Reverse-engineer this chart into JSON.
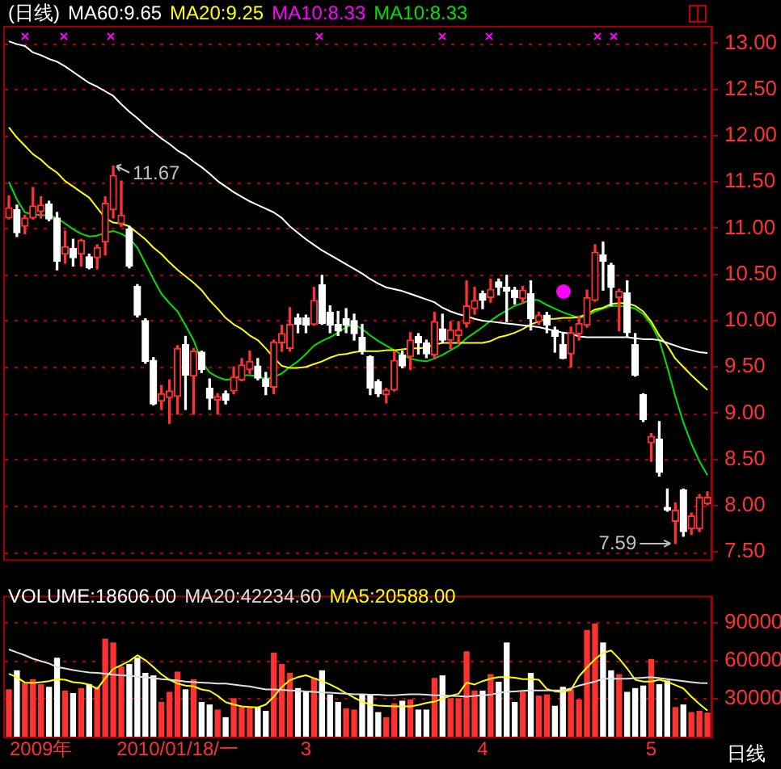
{
  "chart_data": [
    {
      "type": "candlestick",
      "title": "(日线)",
      "categories": [
        null,
        null,
        null,
        null,
        null,
        null,
        null,
        null,
        null,
        null,
        null,
        null,
        null,
        null,
        null,
        null,
        null,
        null,
        null,
        null,
        null,
        null,
        null,
        null,
        null,
        null,
        null,
        null,
        null,
        null,
        null,
        null,
        null,
        null,
        null,
        null,
        null,
        null,
        null,
        null,
        null,
        null,
        null,
        null,
        null,
        null,
        null,
        null,
        null,
        null,
        null,
        null,
        null,
        null,
        null,
        null,
        null,
        null,
        null,
        null,
        null,
        null,
        null,
        null,
        null,
        null,
        null,
        null,
        null,
        null,
        null,
        null,
        null,
        null,
        null,
        null,
        null,
        null,
        null,
        null,
        null,
        null,
        null,
        null,
        null,
        null,
        null,
        null
      ],
      "ohlc": [
        [
          11.11,
          11.35,
          11.1,
          11.22
        ],
        [
          11.2,
          11.25,
          10.91,
          10.95
        ],
        [
          11.02,
          11.14,
          10.94,
          11.11
        ],
        [
          11.11,
          11.44,
          11.1,
          11.24
        ],
        [
          11.18,
          11.34,
          11.11,
          11.25
        ],
        [
          11.26,
          11.29,
          11.08,
          11.1
        ],
        [
          11.11,
          11.17,
          10.55,
          10.64
        ],
        [
          10.72,
          10.97,
          10.62,
          10.8
        ],
        [
          10.78,
          10.88,
          10.59,
          10.68
        ],
        [
          10.72,
          10.88,
          10.59,
          10.87
        ],
        [
          10.69,
          10.72,
          10.56,
          10.57
        ],
        [
          10.68,
          10.82,
          10.56,
          10.79
        ],
        [
          10.85,
          11.34,
          10.71,
          11.27
        ],
        [
          11.2,
          11.67,
          11.11,
          11.57
        ],
        [
          11.05,
          11.51,
          11.02,
          11.14
        ],
        [
          10.99,
          11.02,
          10.57,
          10.59
        ],
        [
          10.37,
          10.39,
          10.04,
          10.06
        ],
        [
          10.0,
          10.02,
          9.54,
          9.56
        ],
        [
          9.57,
          9.6,
          9.09,
          9.1
        ],
        [
          9.13,
          9.3,
          9.04,
          9.21
        ],
        [
          9.17,
          9.36,
          8.89,
          9.24
        ],
        [
          9.18,
          9.73,
          8.99,
          9.7
        ],
        [
          9.74,
          9.83,
          9.04,
          9.41
        ],
        [
          9.4,
          9.7,
          8.99,
          9.67
        ],
        [
          9.66,
          9.67,
          9.44,
          9.47
        ],
        [
          9.27,
          9.37,
          9.04,
          9.16
        ],
        [
          9.14,
          9.21,
          8.99,
          9.18
        ],
        [
          9.21,
          9.24,
          9.1,
          9.14
        ],
        [
          9.24,
          9.5,
          9.21,
          9.39
        ],
        [
          9.36,
          9.59,
          9.35,
          9.52
        ],
        [
          9.47,
          9.67,
          9.43,
          9.56
        ],
        [
          9.51,
          9.59,
          9.36,
          9.38
        ],
        [
          9.37,
          9.44,
          9.2,
          9.29
        ],
        [
          9.28,
          9.79,
          9.21,
          9.77
        ],
        [
          9.76,
          9.95,
          9.67,
          9.86
        ],
        [
          9.7,
          10.14,
          9.67,
          9.96
        ],
        [
          10.03,
          10.07,
          9.87,
          9.96
        ],
        [
          10.03,
          10.06,
          9.87,
          9.95
        ],
        [
          9.96,
          10.36,
          9.95,
          10.22
        ],
        [
          10.39,
          10.49,
          9.96,
          9.97
        ],
        [
          10.09,
          10.16,
          9.87,
          9.95
        ],
        [
          9.96,
          10.1,
          9.84,
          9.89
        ],
        [
          10.02,
          10.13,
          9.87,
          9.95
        ],
        [
          10.0,
          10.07,
          9.79,
          9.86
        ],
        [
          9.82,
          9.96,
          9.64,
          9.67
        ],
        [
          9.61,
          9.62,
          9.2,
          9.27
        ],
        [
          9.34,
          9.36,
          9.18,
          9.21
        ],
        [
          9.2,
          9.27,
          9.11,
          9.25
        ],
        [
          9.25,
          9.67,
          9.24,
          9.57
        ],
        [
          9.63,
          9.67,
          9.49,
          9.51
        ],
        [
          9.61,
          9.87,
          9.47,
          9.79
        ],
        [
          9.83,
          9.86,
          9.64,
          9.76
        ],
        [
          9.76,
          9.79,
          9.6,
          9.64
        ],
        [
          9.63,
          10.09,
          9.59,
          9.99
        ],
        [
          9.91,
          10.07,
          9.76,
          9.79
        ],
        [
          9.79,
          9.99,
          9.7,
          9.9
        ],
        [
          9.84,
          9.99,
          9.76,
          9.9
        ],
        [
          9.97,
          10.43,
          9.93,
          10.16
        ],
        [
          10.13,
          10.36,
          10.07,
          10.22
        ],
        [
          10.29,
          10.32,
          10.13,
          10.22
        ],
        [
          10.25,
          10.45,
          10.2,
          10.34
        ],
        [
          10.42,
          10.45,
          10.28,
          10.36
        ],
        [
          10.36,
          10.49,
          9.99,
          10.32
        ],
        [
          10.33,
          10.36,
          10.18,
          10.25
        ],
        [
          10.24,
          10.37,
          10.19,
          10.33
        ],
        [
          10.29,
          10.43,
          9.9,
          10.02
        ],
        [
          9.99,
          10.09,
          9.96,
          10.06
        ],
        [
          10.06,
          10.09,
          9.87,
          9.95
        ],
        [
          9.9,
          9.93,
          9.66,
          9.83
        ],
        [
          9.74,
          9.87,
          9.59,
          9.59
        ],
        [
          9.64,
          9.93,
          9.5,
          9.87
        ],
        [
          9.86,
          10.05,
          9.79,
          9.97
        ],
        [
          9.95,
          10.33,
          9.93,
          10.25
        ],
        [
          10.22,
          10.82,
          10.21,
          10.74
        ],
        [
          10.71,
          10.85,
          10.33,
          10.64
        ],
        [
          10.6,
          10.62,
          10.16,
          10.36
        ],
        [
          10.25,
          10.34,
          9.89,
          10.32
        ],
        [
          10.3,
          10.43,
          9.83,
          9.87
        ],
        [
          9.74,
          9.86,
          9.4,
          9.41
        ],
        [
          9.2,
          9.21,
          8.91,
          8.93
        ],
        [
          8.68,
          8.78,
          8.48,
          8.75
        ],
        [
          8.72,
          8.91,
          8.32,
          8.36
        ],
        [
          7.98,
          8.18,
          7.94,
          7.95
        ],
        [
          7.83,
          8.03,
          7.59,
          7.95
        ],
        [
          8.17,
          8.18,
          7.67,
          7.72
        ],
        [
          7.75,
          7.92,
          7.69,
          7.89
        ],
        [
          7.75,
          8.12,
          7.72,
          8.09
        ],
        [
          8.02,
          8.15,
          8.01,
          8.09
        ]
      ],
      "colors": [
        "#ff3232",
        "#ffffff",
        "#ff3232",
        "#ff3232",
        "#ff3232",
        "#ffffff",
        "#ffffff",
        "#ff3232",
        "#ffffff",
        "#ff3232",
        "#ffffff",
        "#ff3232",
        "#ff3232",
        "#ff3232",
        "#ff3232",
        "#ffffff",
        "#ffffff",
        "#ffffff",
        "#ffffff",
        "#ff3232",
        "#ff3232",
        "#ff3232",
        "#ffffff",
        "#ff3232",
        "#ffffff",
        "#ffffff",
        "#ff3232",
        "#ffffff",
        "#ff3232",
        "#ff3232",
        "#ff3232",
        "#ffffff",
        "#ffffff",
        "#ff3232",
        "#ff3232",
        "#ff3232",
        "#ffffff",
        "#ffffff",
        "#ff3232",
        "#ffffff",
        "#ffffff",
        "#ffffff",
        "#ffffff",
        "#ffffff",
        "#ffffff",
        "#ffffff",
        "#ffffff",
        "#ff3232",
        "#ff3232",
        "#ffffff",
        "#ff3232",
        "#ffffff",
        "#ffffff",
        "#ff3232",
        "#ffffff",
        "#ff3232",
        "#ff3232",
        "#ff3232",
        "#ff3232",
        "#ffffff",
        "#ff3232",
        "#ffffff",
        "#ffffff",
        "#ffffff",
        "#ff3232",
        "#ffffff",
        "#ff3232",
        "#ffffff",
        "#ffffff",
        "#ffffff",
        "#ff3232",
        "#ff3232",
        "#ff3232",
        "#ff3232",
        "#ffffff",
        "#ffffff",
        "#ff3232",
        "#ffffff",
        "#ffffff",
        "#ffffff",
        "#ff3232",
        "#ffffff",
        "#ffffff",
        "#ff3232",
        "#ffffff",
        "#ff3232",
        "#ff3232",
        "#ff3232"
      ],
      "series": [
        {
          "type": "line",
          "name": "MA60:9.65",
          "color": "#ffffff",
          "values": [
            13.02,
            12.99,
            12.97,
            12.9,
            12.87,
            12.83,
            12.8,
            12.75,
            12.69,
            12.63,
            12.57,
            12.53,
            12.48,
            12.43,
            12.34,
            12.26,
            12.19,
            12.11,
            12.04,
            11.97,
            11.91,
            11.84,
            11.79,
            11.72,
            11.66,
            11.59,
            11.51,
            11.45,
            11.39,
            11.34,
            11.29,
            11.25,
            11.21,
            11.17,
            11.11,
            11.02,
            10.95,
            10.88,
            10.82,
            10.76,
            10.71,
            10.66,
            10.61,
            10.56,
            10.51,
            10.45,
            10.4,
            10.36,
            10.34,
            10.32,
            10.29,
            10.26,
            10.23,
            10.2,
            10.14,
            10.1,
            10.07,
            10.05,
            10.02,
            10.0,
            9.99,
            9.98,
            9.97,
            9.96,
            9.95,
            9.94,
            9.93,
            9.91,
            9.89,
            9.87,
            9.86,
            9.83,
            9.82,
            9.82,
            9.82,
            9.82,
            9.82,
            9.82,
            9.81,
            9.8,
            9.8,
            9.79,
            9.76,
            9.73,
            9.7,
            9.68,
            9.66,
            9.65
          ]
        },
        {
          "type": "line",
          "name": "MA20:9.25",
          "color": "#ffff00",
          "values": [
            12.09,
            11.98,
            11.89,
            11.8,
            11.74,
            11.66,
            11.6,
            11.51,
            11.45,
            11.39,
            11.33,
            11.22,
            11.11,
            11.06,
            11.05,
            11.02,
            10.95,
            10.88,
            10.79,
            10.72,
            10.63,
            10.55,
            10.48,
            10.41,
            10.33,
            10.22,
            10.13,
            10.03,
            9.96,
            9.91,
            9.84,
            9.79,
            9.7,
            9.6,
            9.51,
            9.49,
            9.49,
            9.5,
            9.53,
            9.56,
            9.6,
            9.63,
            9.64,
            9.66,
            9.67,
            9.67,
            9.67,
            9.68,
            9.68,
            9.69,
            9.7,
            9.7,
            9.71,
            9.74,
            9.76,
            9.76,
            9.76,
            9.76,
            9.76,
            9.76,
            9.78,
            9.82,
            9.84,
            9.87,
            9.91,
            9.96,
            9.99,
            10.02,
            10.02,
            10.03,
            10.03,
            10.04,
            10.07,
            10.12,
            10.14,
            10.18,
            10.19,
            10.19,
            10.16,
            10.1,
            9.99,
            9.84,
            9.73,
            9.59,
            9.5,
            9.41,
            9.33,
            9.25
          ]
        },
        {
          "type": "line",
          "name": "MA10:8.33",
          "color": "#ff00ff",
          "values": [
            null,
            null,
            null,
            null,
            null,
            null,
            null,
            null,
            null,
            null,
            null,
            null,
            null,
            null,
            null,
            null,
            null,
            null,
            null,
            null,
            null,
            null,
            null,
            null,
            null,
            null,
            null,
            null,
            null,
            null,
            null,
            null,
            null,
            null,
            null,
            null,
            null,
            null,
            null,
            null,
            null,
            null,
            null,
            null,
            null,
            null,
            null,
            null,
            null,
            null,
            null,
            null,
            null,
            null,
            null,
            null,
            null,
            null,
            null,
            null,
            null,
            null,
            null,
            null,
            null,
            null,
            null,
            null,
            null,
            null,
            null,
            null,
            null,
            null,
            null,
            null,
            null,
            null,
            null,
            null,
            null,
            null,
            null,
            null,
            null,
            null,
            null,
            null
          ]
        },
        {
          "type": "line",
          "name": "MA10:8.33",
          "color": "#00e000",
          "values": [
            11.5,
            11.31,
            11.17,
            11.15,
            11.14,
            11.14,
            11.11,
            11.05,
            10.99,
            10.94,
            10.91,
            10.92,
            10.95,
            10.97,
            10.94,
            10.89,
            10.79,
            10.62,
            10.45,
            10.29,
            10.19,
            10.1,
            9.95,
            9.79,
            9.56,
            9.44,
            9.39,
            9.36,
            9.37,
            9.41,
            9.41,
            9.4,
            9.37,
            9.39,
            9.43,
            9.5,
            9.56,
            9.64,
            9.73,
            9.78,
            9.82,
            9.87,
            9.93,
            9.96,
            9.91,
            9.84,
            9.78,
            9.73,
            9.68,
            9.63,
            9.59,
            9.57,
            9.56,
            9.59,
            9.63,
            9.68,
            9.73,
            9.81,
            9.87,
            9.93,
            10.0,
            10.06,
            10.11,
            10.16,
            10.19,
            10.23,
            10.22,
            10.17,
            10.13,
            10.09,
            10.06,
            10.03,
            10.05,
            10.1,
            10.13,
            10.16,
            10.16,
            10.15,
            10.13,
            10.07,
            9.96,
            9.79,
            9.5,
            9.18,
            8.9,
            8.67,
            8.48,
            8.33
          ]
        }
      ],
      "ylim": [
        7.42,
        13.17
      ],
      "yticks": [
        {
          "value": 7.5,
          "label": "7.50"
        },
        {
          "value": 8,
          "label": "8.00"
        },
        {
          "value": 8.5,
          "label": "8.50"
        },
        {
          "value": 9,
          "label": "9.00"
        },
        {
          "value": 9.5,
          "label": "9.50"
        },
        {
          "value": 10,
          "label": "10.00"
        },
        {
          "value": 10.5,
          "label": "10.50"
        },
        {
          "value": 11,
          "label": "11.00"
        },
        {
          "value": 11.5,
          "label": "11.50"
        },
        {
          "value": 12,
          "label": "12.00"
        },
        {
          "value": 12.5,
          "label": "12.50"
        },
        {
          "value": 13,
          "label": "13.00"
        }
      ],
      "grid": "y",
      "tick_labels": "y",
      "legend": "top left",
      "marker": "none",
      "annotations": [
        "11.67",
        "7.59"
      ]
    },
    {
      "type": "bar",
      "categories": [
        null,
        null,
        null,
        null,
        "2009年",
        null,
        null,
        null,
        null,
        null,
        null,
        null,
        null,
        null,
        null,
        null,
        null,
        null,
        null,
        null,
        null,
        "2010/01/18/一",
        null,
        null,
        null,
        null,
        null,
        null,
        null,
        null,
        null,
        null,
        null,
        null,
        null,
        null,
        null,
        "3",
        null,
        null,
        null,
        null,
        null,
        null,
        null,
        null,
        null,
        null,
        null,
        null,
        null,
        null,
        null,
        null,
        null,
        null,
        null,
        null,
        null,
        "4",
        null,
        null,
        null,
        null,
        null,
        null,
        null,
        null,
        null,
        null,
        null,
        null,
        null,
        null,
        null,
        null,
        null,
        null,
        null,
        null,
        "5",
        null,
        null,
        null,
        null,
        null,
        null,
        null
      ],
      "series": [
        {
          "type": "bar",
          "name": "VOLUME:18606.00",
          "color": "#ffffff",
          "colors": [
            "#ff3232",
            "#ffffff",
            "#ff3232",
            "#ff3232",
            "#ff3232",
            "#ffffff",
            "#ffffff",
            "#ff3232",
            "#ffffff",
            "#ff3232",
            "#ffffff",
            "#ff3232",
            "#ff3232",
            "#ff3232",
            "#ff3232",
            "#ffffff",
            "#ffffff",
            "#ffffff",
            "#ffffff",
            "#ff3232",
            "#ff3232",
            "#ff3232",
            "#ffffff",
            "#ff3232",
            "#ffffff",
            "#ffffff",
            "#ff3232",
            "#ffffff",
            "#ff3232",
            "#ff3232",
            "#ff3232",
            "#ffffff",
            "#ffffff",
            "#ff3232",
            "#ff3232",
            "#ff3232",
            "#ffffff",
            "#ffffff",
            "#ff3232",
            "#ffffff",
            "#ffffff",
            "#ffffff",
            "#ff3232",
            "#ff3232",
            "#ffffff",
            "#ffffff",
            "#ffffff",
            "#ff3232",
            "#ff3232",
            "#ffffff",
            "#ff3232",
            "#ffffff",
            "#ffffff",
            "#ff3232",
            "#ffffff",
            "#ff3232",
            "#ff3232",
            "#ff3232",
            "#ff3232",
            "#ffffff",
            "#ff3232",
            "#ffffff",
            "#ffffff",
            "#ffffff",
            "#ff3232",
            "#ffffff",
            "#ff3232",
            "#ff3232",
            "#ffffff",
            "#ffffff",
            "#ff3232",
            "#ff3232",
            "#ff3232",
            "#ff3232",
            "#ffffff",
            "#ffffff",
            "#ff3232",
            "#ffffff",
            "#ffffff",
            "#ffffff",
            "#ff3232",
            "#ffffff",
            "#ffffff",
            "#ff3232",
            "#ffffff",
            "#ff3232",
            "#ff3232",
            "#ff3232"
          ],
          "values": [
            37000,
            52000,
            42000,
            45000,
            41000,
            39000,
            62000,
            36000,
            34000,
            38000,
            41000,
            39000,
            77000,
            74000,
            55000,
            57000,
            62000,
            50000,
            48000,
            27000,
            35000,
            51000,
            37000,
            45000,
            27000,
            25000,
            21000,
            15000,
            30000,
            23000,
            23000,
            23000,
            20000,
            66000,
            57000,
            50000,
            38000,
            35000,
            46000,
            52000,
            33000,
            27000,
            22000,
            21000,
            33000,
            33000,
            19000,
            15000,
            26000,
            28000,
            29000,
            21000,
            21000,
            46000,
            48000,
            30000,
            30000,
            67000,
            36000,
            36000,
            49000,
            43000,
            74000,
            27000,
            35000,
            50000,
            32000,
            33000,
            24000,
            39000,
            37000,
            29000,
            84000,
            89000,
            74000,
            52000,
            49000,
            35000,
            38000,
            40000,
            61000,
            41000,
            44000,
            23000,
            25000,
            19000,
            20000,
            18606
          ]
        },
        {
          "type": "line",
          "name": "MA20:42234.60",
          "color": "#e0e0e0",
          "values": [
            68900,
            66600,
            64300,
            61600,
            59700,
            57800,
            55100,
            53900,
            52700,
            51600,
            50800,
            50400,
            49700,
            48900,
            48500,
            48100,
            47400,
            47000,
            46200,
            45400,
            45000,
            44300,
            43500,
            43100,
            42700,
            42400,
            42000,
            42000,
            41200,
            40400,
            39700,
            38500,
            37300,
            37300,
            37000,
            36600,
            36200,
            35800,
            35400,
            35000,
            34700,
            34300,
            33900,
            33500,
            33500,
            33100,
            33100,
            32700,
            32700,
            33100,
            33500,
            33500,
            33100,
            32700,
            32700,
            32300,
            32000,
            31600,
            32300,
            32700,
            33100,
            34700,
            35400,
            35800,
            36200,
            36600,
            36600,
            36600,
            36600,
            36600,
            38100,
            40400,
            42000,
            43500,
            45800,
            45800,
            45800,
            45800,
            46200,
            46600,
            47000,
            46200,
            45400,
            44700,
            43900,
            43100,
            42400,
            42234.6
          ]
        },
        {
          "type": "line",
          "name": "MA5:20588.00",
          "color": "#ffff00",
          "values": [
            49700,
            47000,
            42700,
            42400,
            43100,
            43900,
            45400,
            45000,
            43100,
            42400,
            41200,
            37700,
            46200,
            53500,
            56600,
            59700,
            64300,
            60400,
            55100,
            49300,
            45000,
            42000,
            40400,
            39700,
            37300,
            36200,
            32300,
            27300,
            25400,
            23900,
            23500,
            23100,
            25400,
            31600,
            39300,
            44700,
            47000,
            48500,
            46200,
            43900,
            41200,
            38100,
            34300,
            30800,
            27700,
            25400,
            24600,
            24300,
            23900,
            23900,
            23900,
            25000,
            26600,
            27700,
            30000,
            32300,
            33900,
            42700,
            41200,
            43900,
            45800,
            47000,
            47000,
            46600,
            45400,
            45400,
            45000,
            37700,
            35800,
            35400,
            37000,
            47700,
            54700,
            61200,
            66200,
            68100,
            61600,
            53900,
            45000,
            43500,
            43500,
            45000,
            43500,
            40800,
            38100,
            31600,
            25800,
            20588
          ]
        }
      ],
      "ylim": [
        0,
        110000
      ],
      "yticks": [
        30000,
        60000,
        90000
      ],
      "grid": "y",
      "legend": "top left",
      "marker": "none",
      "annotations": [
        "日线"
      ]
    }
  ]
}
